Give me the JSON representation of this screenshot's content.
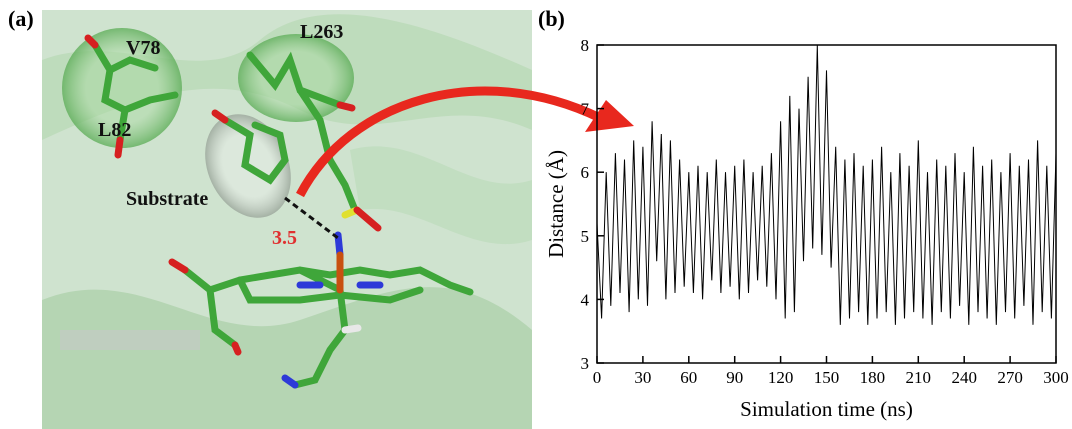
{
  "panel_a": {
    "label": "(a)",
    "residues": [
      "V78",
      "L82",
      "L263"
    ],
    "substrate": "Substrate",
    "distance": 3.5
  },
  "chart_data": {
    "type": "line",
    "label": "(b)",
    "xlabel": "Simulation time (ns)",
    "ylabel": "Distance (Å)",
    "color": "#000000",
    "x": [
      0,
      3,
      6,
      9,
      12,
      15,
      18,
      21,
      24,
      27,
      30,
      33,
      36,
      39,
      42,
      45,
      48,
      51,
      54,
      57,
      60,
      63,
      66,
      69,
      72,
      75,
      78,
      81,
      84,
      87,
      90,
      93,
      96,
      99,
      102,
      105,
      108,
      111,
      114,
      117,
      120,
      123,
      126,
      129,
      132,
      135,
      138,
      141,
      144,
      147,
      150,
      153,
      156,
      159,
      162,
      165,
      168,
      171,
      174,
      177,
      180,
      183,
      186,
      189,
      192,
      195,
      198,
      201,
      204,
      207,
      210,
      213,
      216,
      219,
      222,
      225,
      228,
      231,
      234,
      237,
      240,
      243,
      246,
      249,
      252,
      255,
      258,
      261,
      264,
      267,
      270,
      273,
      276,
      279,
      282,
      285,
      288,
      291,
      294,
      297,
      300
    ],
    "values": [
      5.2,
      3.7,
      6.0,
      3.9,
      6.3,
      4.1,
      6.2,
      3.8,
      6.5,
      4.0,
      6.4,
      3.9,
      6.8,
      4.6,
      6.6,
      4.0,
      6.5,
      4.1,
      6.2,
      4.2,
      6.0,
      4.1,
      6.1,
      4.0,
      6.0,
      4.3,
      6.2,
      4.1,
      6.0,
      4.2,
      6.1,
      4.0,
      6.2,
      4.1,
      6.0,
      4.3,
      6.1,
      4.2,
      6.3,
      4.0,
      6.8,
      3.7,
      7.2,
      3.8,
      7.0,
      4.6,
      7.5,
      4.8,
      8.0,
      4.7,
      7.6,
      4.5,
      6.4,
      3.6,
      6.2,
      3.7,
      6.3,
      3.8,
      6.1,
      3.6,
      6.2,
      3.7,
      6.4,
      3.8,
      6.0,
      3.6,
      6.3,
      3.7,
      6.1,
      3.8,
      6.5,
      3.7,
      6.0,
      3.6,
      6.2,
      3.8,
      6.1,
      3.7,
      6.3,
      3.9,
      6.0,
      3.6,
      6.4,
      3.8,
      6.1,
      3.7,
      6.2,
      3.6,
      6.0,
      3.8,
      6.3,
      3.7,
      6.1,
      3.9,
      6.2,
      3.6,
      6.5,
      3.8,
      6.1,
      3.7,
      6.3
    ],
    "xlim": [
      0,
      300
    ],
    "xticks": [
      0,
      30,
      60,
      90,
      120,
      150,
      180,
      210,
      240,
      270,
      300
    ],
    "ylim": [
      3,
      8
    ],
    "yticks": [
      3,
      4,
      5,
      6,
      7,
      8
    ]
  }
}
